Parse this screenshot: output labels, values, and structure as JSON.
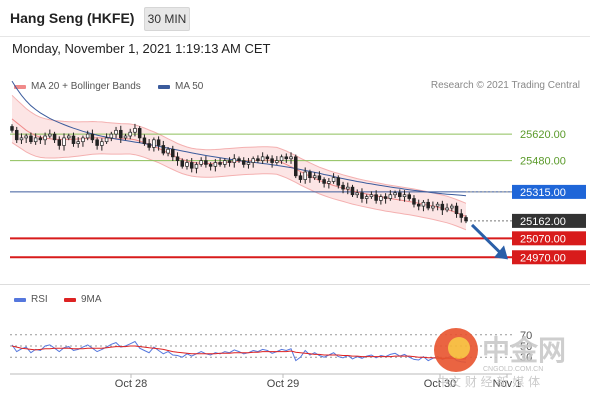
{
  "header": {
    "title": "Hang Seng (HKFE)",
    "timeframe": "30 MIN"
  },
  "datetime": "Monday, November 1, 2021 1:19:13 AM CET",
  "legend": {
    "ma20": {
      "label": "MA 20 + Bollinger Bands",
      "color": "#f08a8a"
    },
    "ma50": {
      "label": "MA 50",
      "color": "#3b5b9c"
    },
    "rsi": {
      "label": "RSI",
      "color": "#5577dd"
    },
    "ma9": {
      "label": "9MA",
      "color": "#dd2222"
    }
  },
  "copyright": "Research © 2021 Trading Central",
  "watermark": {
    "brand": "中金网",
    "url": "CNGOLD.COM.CN",
    "tagline": "中文 财 经 新 媒 体"
  },
  "chart_data": [
    {
      "type": "candlestick",
      "y_range": [
        24850,
        25800
      ],
      "levels": [
        {
          "label": "25620.00",
          "value": 25620,
          "color": "#8dbf5a",
          "style": "line"
        },
        {
          "label": "25480.00",
          "value": 25480,
          "color": "#8dbf5a",
          "style": "line"
        },
        {
          "label": "25315.00",
          "value": 25315,
          "color": "#3b5b9c",
          "style": "line",
          "badge": "#1f66d8"
        },
        {
          "label": "25162.00",
          "value": 25162,
          "color": "#333333",
          "style": "current",
          "badge": "#333333"
        },
        {
          "label": "25070.00",
          "value": 25070,
          "color": "#d81b1b",
          "style": "line",
          "badge": "#d81b1b"
        },
        {
          "label": "24970.00",
          "value": 24970,
          "color": "#d81b1b",
          "style": "line",
          "badge": "#d81b1b"
        }
      ],
      "x_ticks": [
        "Oct 28",
        "Oct 29",
        "Oct 30",
        "Nov 1"
      ],
      "closes": [
        25640,
        25590,
        25600,
        25610,
        25580,
        25600,
        25590,
        25610,
        25620,
        25590,
        25560,
        25600,
        25610,
        25570,
        25580,
        25600,
        25620,
        25590,
        25560,
        25580,
        25600,
        25620,
        25640,
        25600,
        25610,
        25630,
        25650,
        25600,
        25570,
        25550,
        25590,
        25560,
        25520,
        25540,
        25500,
        25480,
        25450,
        25470,
        25440,
        25460,
        25480,
        25460,
        25450,
        25470,
        25460,
        25480,
        25470,
        25490,
        25480,
        25460,
        25470,
        25490,
        25480,
        25500,
        25490,
        25470,
        25480,
        25500,
        25490,
        25500,
        25400,
        25380,
        25420,
        25390,
        25400,
        25380,
        25360,
        25370,
        25390,
        25350,
        25330,
        25340,
        25300,
        25310,
        25280,
        25290,
        25300,
        25270,
        25290,
        25280,
        25300,
        25310,
        25290,
        25300,
        25280,
        25250,
        25240,
        25260,
        25230,
        25240,
        25250,
        25220,
        25230,
        25240,
        25200,
        25180,
        25162
      ],
      "ma20": [
        25700,
        25680,
        25660,
        25640,
        25625,
        25612,
        25603,
        25598,
        25595,
        25593,
        25592,
        25592,
        25592,
        25593,
        25594,
        25596,
        25598,
        25600,
        25600,
        25600,
        25598,
        25597,
        25596,
        25595,
        25595,
        25594,
        25590,
        25583,
        25575,
        25565,
        25555,
        25545,
        25533,
        25520,
        25508,
        25496,
        25486,
        25478,
        25472,
        25468,
        25466,
        25465,
        25465,
        25466,
        25468,
        25470,
        25472,
        25474,
        25476,
        25478,
        25479,
        25480,
        25481,
        25482,
        25482,
        25481,
        25479,
        25470,
        25460,
        25448,
        25436,
        25422,
        25410,
        25398,
        25386,
        25375,
        25366,
        25357,
        25349,
        25342,
        25335,
        25328,
        25321,
        25315,
        25309,
        25304,
        25299,
        25294,
        25289,
        25284,
        25280,
        25276,
        25272,
        25268,
        25264,
        25260,
        25255,
        25250,
        25245,
        25240,
        25234,
        25228,
        25222,
        25214,
        25205,
        25195,
        25185
      ],
      "ma50": [
        25900,
        25860,
        25825,
        25795,
        25770,
        25750,
        25732,
        25717,
        25703,
        25691,
        25680,
        25670,
        25660,
        25651,
        25643,
        25635,
        25628,
        25621,
        25615,
        25609,
        25604,
        25599,
        25594,
        25590,
        25586,
        25582,
        25578,
        25574,
        25570,
        25565,
        25561,
        25556,
        25551,
        25546,
        25541,
        25536,
        25531,
        25526,
        25521,
        25516,
        25512,
        25507,
        25503,
        25499,
        25495,
        25491,
        25487,
        25484,
        25480,
        25477,
        25474,
        25471,
        25468,
        25465,
        25462,
        25458,
        25455,
        25451,
        25447,
        25443,
        25438,
        25433,
        25428,
        25423,
        25418,
        25413,
        25407,
        25402,
        25396,
        25390,
        25385,
        25380,
        25375,
        25370,
        25366,
        25361,
        25357,
        25353,
        25349,
        25345,
        25341,
        25337,
        25334,
        25330,
        25326,
        25323,
        25320,
        25317,
        25314,
        25311,
        25308,
        25305,
        25303,
        25301,
        25299,
        25297,
        25295
      ]
    },
    {
      "type": "line",
      "name": "RSI",
      "y_range": [
        0,
        100
      ],
      "levels": [
        {
          "label": "70",
          "value": 70
        },
        {
          "label": "50",
          "value": 50
        },
        {
          "label": "30",
          "value": 30
        }
      ],
      "rsi": [
        52,
        40,
        45,
        48,
        38,
        44,
        42,
        50,
        52,
        46,
        40,
        47,
        49,
        42,
        44,
        48,
        52,
        46,
        40,
        44,
        48,
        53,
        56,
        48,
        50,
        54,
        58,
        46,
        42,
        38,
        48,
        42,
        36,
        40,
        34,
        33,
        30,
        36,
        32,
        36,
        40,
        36,
        34,
        38,
        36,
        40,
        38,
        43,
        40,
        36,
        38,
        42,
        40,
        44,
        42,
        37,
        40,
        44,
        42,
        45,
        24,
        30,
        42,
        34,
        38,
        33,
        30,
        34,
        38,
        31,
        29,
        33,
        27,
        31,
        28,
        32,
        34,
        29,
        33,
        31,
        35,
        37,
        32,
        35,
        30,
        26,
        25,
        31,
        24,
        28,
        31,
        26,
        29,
        32,
        24,
        22,
        21
      ],
      "ma9": [
        50,
        48,
        46,
        45,
        44,
        43,
        44,
        45,
        45,
        46,
        46,
        46,
        46,
        45,
        45,
        45,
        46,
        46,
        46,
        46,
        47,
        48,
        49,
        49,
        49,
        50,
        50,
        49,
        48,
        47,
        46,
        45,
        44,
        42,
        40,
        39,
        38,
        37,
        36,
        36,
        36,
        36,
        36,
        36,
        37,
        37,
        37,
        38,
        38,
        38,
        38,
        39,
        39,
        40,
        40,
        40,
        40,
        40,
        40,
        41,
        39,
        38,
        37,
        36,
        35,
        35,
        34,
        34,
        34,
        34,
        33,
        33,
        32,
        32,
        31,
        31,
        31,
        31,
        31,
        31,
        31,
        32,
        32,
        32,
        32,
        31,
        30,
        30,
        29,
        29,
        28,
        28,
        28,
        28,
        28,
        27,
        27
      ]
    }
  ]
}
